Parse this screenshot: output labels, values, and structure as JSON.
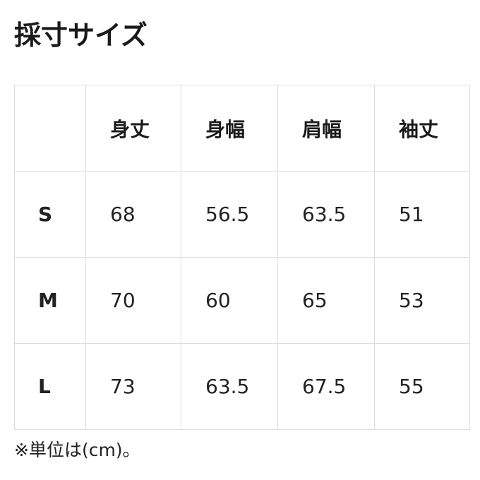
{
  "title": "採寸サイズ",
  "table": {
    "headers": [
      "",
      "身丈",
      "身幅",
      "肩幅",
      "袖丈"
    ],
    "rows": [
      {
        "size": "S",
        "values": [
          "68",
          "56.5",
          "63.5",
          "51"
        ]
      },
      {
        "size": "M",
        "values": [
          "70",
          "60",
          "65",
          "53"
        ]
      },
      {
        "size": "L",
        "values": [
          "73",
          "63.5",
          "67.5",
          "55"
        ]
      }
    ]
  },
  "note": "※単位は(cm)。"
}
